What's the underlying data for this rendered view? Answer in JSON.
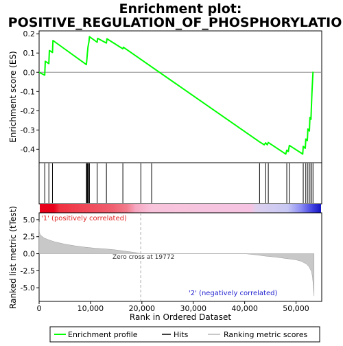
{
  "chart_data": {
    "type": "line",
    "title_line1": "Enrichment plot:",
    "title_line2": "POSITIVE_REGULATION_OF_PHOSPHORYLATION",
    "xlabel": "Rank in Ordered Dataset",
    "ylabel_top": "Enrichment score (ES)",
    "ylabel_bottom": "Ranked list metric (tTest)",
    "xlim": [
      0,
      55000
    ],
    "es_ylim": [
      -0.47,
      0.215
    ],
    "metric_ylim": [
      -7.0,
      6.0
    ],
    "x_ticks": [
      0,
      10000,
      20000,
      30000,
      40000,
      50000
    ],
    "x_tick_labels": [
      "0",
      "10,000",
      "20,000",
      "30,000",
      "40,000",
      "50,000"
    ],
    "es_ticks": [
      0.2,
      0.1,
      0.0,
      -0.1,
      -0.2,
      -0.3,
      -0.4
    ],
    "es_tick_labels": [
      "0.2",
      "0.1",
      "0.0",
      "-0.1",
      "-0.2",
      "-0.3",
      "-0.4"
    ],
    "metric_ticks": [
      5.0,
      2.5,
      0.0,
      -2.5,
      -5.0
    ],
    "metric_tick_labels": [
      "5.0",
      "2.5",
      "0.0",
      "-2.5",
      "-5.0"
    ],
    "zero_cross_rank": 19772,
    "zero_cross_label": "Zero cross at 19772",
    "pos_label": "'1' (positively correlated)",
    "neg_label": "'2' (negatively correlated)",
    "es_curve": {
      "x": [
        0,
        1100,
        1200,
        1900,
        2000,
        2600,
        2700,
        9200,
        9300,
        9400,
        9500,
        9700,
        9800,
        11300,
        11400,
        13100,
        13200,
        16300,
        16400,
        42900,
        43800,
        44100,
        44400,
        44600,
        48000,
        48200,
        48500,
        48700,
        51300,
        51400,
        51800,
        51900,
        52200,
        52300,
        52600,
        52700,
        52900,
        53000,
        53100,
        53300
      ],
      "y": [
        0.0,
        -0.015,
        0.057,
        0.045,
        0.113,
        0.103,
        0.165,
        0.04,
        0.07,
        0.1,
        0.13,
        0.16,
        0.185,
        0.156,
        0.176,
        0.152,
        0.174,
        0.122,
        0.13,
        -0.362,
        -0.377,
        -0.367,
        -0.377,
        -0.365,
        -0.425,
        -0.405,
        -0.412,
        -0.38,
        -0.425,
        -0.385,
        -0.395,
        -0.347,
        -0.355,
        -0.295,
        -0.305,
        -0.235,
        -0.245,
        -0.175,
        -0.1,
        0.003
      ]
    },
    "hits": [
      1100,
      1900,
      2600,
      9200,
      9300,
      9400,
      9500,
      9700,
      9800,
      11300,
      13100,
      16300,
      19800,
      21900,
      42900,
      44100,
      44600,
      48200,
      48700,
      51400,
      51900,
      52300,
      52700,
      53000,
      53300
    ],
    "metric_curve": {
      "x": [
        0,
        50,
        200,
        500,
        1000,
        2000,
        3000,
        5000,
        7000,
        9000,
        11000,
        13000,
        15000,
        17000,
        19000,
        19772,
        22000,
        30000,
        40000,
        42000,
        44000,
        46000,
        48000,
        50000,
        51000,
        52000,
        52500,
        53000,
        53200,
        53350,
        53450,
        53500
      ],
      "y": [
        4.7,
        3.2,
        2.8,
        2.6,
        2.3,
        2.0,
        1.75,
        1.4,
        1.15,
        0.95,
        0.8,
        0.7,
        0.55,
        0.35,
        0.15,
        0.0,
        0.0,
        0.0,
        0.0,
        -0.15,
        -0.35,
        -0.5,
        -0.7,
        -0.9,
        -1.1,
        -1.5,
        -1.9,
        -2.6,
        -3.4,
        -4.6,
        -5.6,
        -6.2
      ]
    },
    "colors": {
      "curve": "#00ff00",
      "hit": "#000000",
      "metric_fill": "#c8c8c8",
      "zero_cross": "#aaaaaa",
      "neg_label": "#1f1fd0"
    },
    "legend": {
      "enrichment": "Enrichment profile",
      "hits": "Hits",
      "ranking": "Ranking metric scores"
    }
  }
}
